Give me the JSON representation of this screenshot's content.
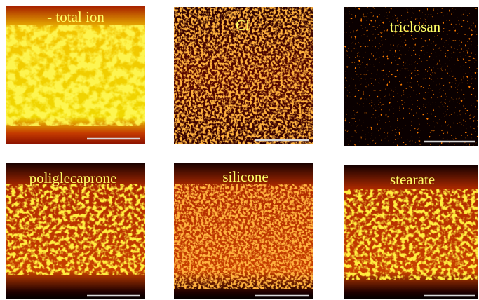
{
  "panels": [
    {
      "label": "- total ion"
    },
    {
      "label": "Cl"
    },
    {
      "label": "triclosan"
    },
    {
      "label": "poliglecaprone"
    },
    {
      "label": "silicone"
    },
    {
      "label": "stearate"
    }
  ]
}
